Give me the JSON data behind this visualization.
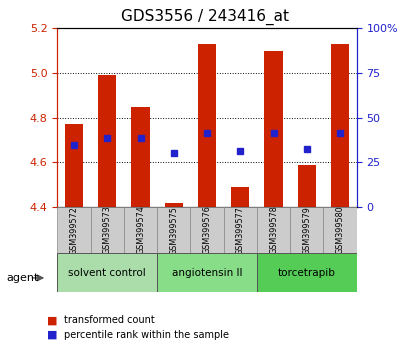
{
  "title": "GDS3556 / 243416_at",
  "samples": [
    "GSM399572",
    "GSM399573",
    "GSM399574",
    "GSM399575",
    "GSM399576",
    "GSM399577",
    "GSM399578",
    "GSM399579",
    "GSM399580"
  ],
  "bar_values": [
    4.77,
    4.99,
    4.85,
    4.42,
    5.13,
    4.49,
    5.1,
    4.59,
    5.13
  ],
  "bar_base": 4.4,
  "blue_values": [
    4.68,
    4.71,
    4.71,
    4.64,
    4.73,
    4.65,
    4.73,
    4.66,
    4.73
  ],
  "ylim": [
    4.4,
    5.2
  ],
  "yticks_left": [
    4.4,
    4.6,
    4.8,
    5.0,
    5.2
  ],
  "yticks_right": [
    0,
    25,
    50,
    75,
    100
  ],
  "bar_color": "#cc2200",
  "blue_color": "#2222cc",
  "bar_width": 0.55,
  "grid_color": "black",
  "groups": [
    {
      "label": "solvent control",
      "samples": [
        0,
        1,
        2
      ],
      "color": "#aaddaa"
    },
    {
      "label": "angiotensin II",
      "samples": [
        3,
        4,
        5
      ],
      "color": "#88dd88"
    },
    {
      "label": "torcetrapib",
      "samples": [
        6,
        7,
        8
      ],
      "color": "#55cc55"
    }
  ],
  "legend_items": [
    {
      "label": "transformed count",
      "color": "#cc2200"
    },
    {
      "label": "percentile rank within the sample",
      "color": "#2222cc"
    }
  ],
  "agent_label": "agent",
  "title_fontsize": 11,
  "axis_color_left": "#cc2200",
  "axis_color_right": "#2222cc"
}
